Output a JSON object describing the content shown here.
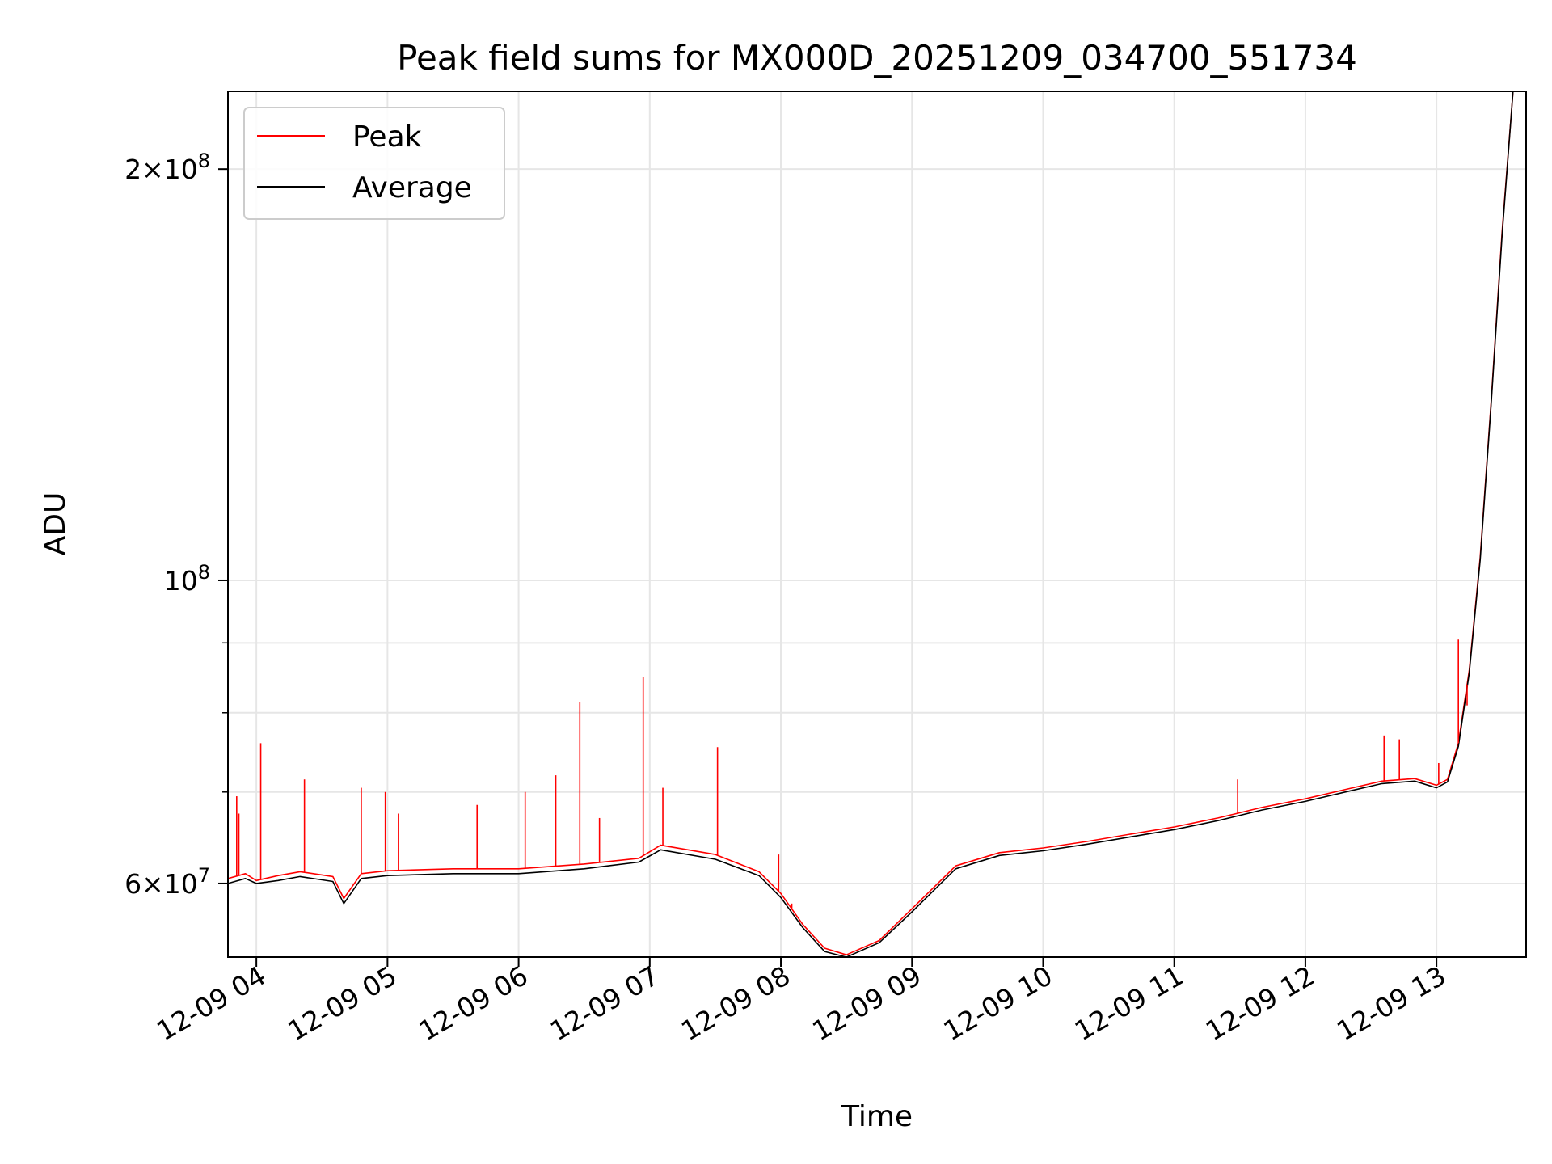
{
  "chart_data": {
    "type": "line",
    "title": "Peak field sums for MX000D_20251209_034700_551734",
    "xlabel": "Time",
    "ylabel": "ADU",
    "yscale": "log",
    "xlim": [
      "2025-12-09 03:47",
      "2025-12-09 13:41"
    ],
    "ylim": [
      53000000,
      228000000
    ],
    "grid": true,
    "legend_position": "top-left",
    "x_ticks": [
      {
        "value": "2025-12-09 04:00",
        "label": "12-09 04"
      },
      {
        "value": "2025-12-09 05:00",
        "label": "12-09 05"
      },
      {
        "value": "2025-12-09 06:00",
        "label": "12-09 06"
      },
      {
        "value": "2025-12-09 07:00",
        "label": "12-09 07"
      },
      {
        "value": "2025-12-09 08:00",
        "label": "12-09 08"
      },
      {
        "value": "2025-12-09 09:00",
        "label": "12-09 09"
      },
      {
        "value": "2025-12-09 10:00",
        "label": "12-09 10"
      },
      {
        "value": "2025-12-09 11:00",
        "label": "12-09 11"
      },
      {
        "value": "2025-12-09 12:00",
        "label": "12-09 12"
      },
      {
        "value": "2025-12-09 13:00",
        "label": "12-09 13"
      }
    ],
    "y_ticks_major": [
      {
        "value": 60000000,
        "mantissa": "6",
        "exponent": "7"
      },
      {
        "value": 100000000,
        "mantissa": "",
        "exponent": "8"
      },
      {
        "value": 200000000,
        "mantissa": "2",
        "exponent": "8"
      }
    ],
    "y_ticks_minor": [
      70000000,
      80000000,
      90000000
    ],
    "series": [
      {
        "name": "Peak",
        "color": "#ff0000",
        "x": [
          "2025-12-09 03:47",
          "2025-12-09 03:55",
          "2025-12-09 04:00",
          "2025-12-09 04:10",
          "2025-12-09 04:20",
          "2025-12-09 04:35",
          "2025-12-09 04:40",
          "2025-12-09 04:48",
          "2025-12-09 05:00",
          "2025-12-09 05:30",
          "2025-12-09 06:00",
          "2025-12-09 06:30",
          "2025-12-09 06:55",
          "2025-12-09 07:05",
          "2025-12-09 07:30",
          "2025-12-09 07:50",
          "2025-12-09 08:00",
          "2025-12-09 08:10",
          "2025-12-09 08:20",
          "2025-12-09 08:30",
          "2025-12-09 08:45",
          "2025-12-09 09:00",
          "2025-12-09 09:20",
          "2025-12-09 09:40",
          "2025-12-09 10:00",
          "2025-12-09 10:20",
          "2025-12-09 10:40",
          "2025-12-09 11:00",
          "2025-12-09 11:20",
          "2025-12-09 11:40",
          "2025-12-09 12:00",
          "2025-12-09 12:20",
          "2025-12-09 12:35",
          "2025-12-09 12:50",
          "2025-12-09 13:00",
          "2025-12-09 13:05",
          "2025-12-09 13:10",
          "2025-12-09 13:15",
          "2025-12-09 13:20",
          "2025-12-09 13:25",
          "2025-12-09 13:30",
          "2025-12-09 13:35"
        ],
        "values": [
          60500000,
          61000000,
          60300000,
          60800000,
          61200000,
          60700000,
          58500000,
          61000000,
          61300000,
          61500000,
          61500000,
          62000000,
          62600000,
          64000000,
          63000000,
          61200000,
          59000000,
          56000000,
          53800000,
          53200000,
          54500000,
          57500000,
          61800000,
          63200000,
          63700000,
          64400000,
          65200000,
          66000000,
          67000000,
          68200000,
          69200000,
          70400000,
          71300000,
          71600000,
          70800000,
          71500000,
          76000000,
          86000000,
          104000000,
          135000000,
          180000000,
          228000000
        ]
      },
      {
        "name": "Average",
        "color": "#000000",
        "x": [
          "2025-12-09 03:47",
          "2025-12-09 03:55",
          "2025-12-09 04:00",
          "2025-12-09 04:10",
          "2025-12-09 04:20",
          "2025-12-09 04:35",
          "2025-12-09 04:40",
          "2025-12-09 04:48",
          "2025-12-09 05:00",
          "2025-12-09 05:30",
          "2025-12-09 06:00",
          "2025-12-09 06:30",
          "2025-12-09 06:55",
          "2025-12-09 07:05",
          "2025-12-09 07:30",
          "2025-12-09 07:50",
          "2025-12-09 08:00",
          "2025-12-09 08:10",
          "2025-12-09 08:20",
          "2025-12-09 08:30",
          "2025-12-09 08:45",
          "2025-12-09 09:00",
          "2025-12-09 09:20",
          "2025-12-09 09:40",
          "2025-12-09 10:00",
          "2025-12-09 10:20",
          "2025-12-09 10:40",
          "2025-12-09 11:00",
          "2025-12-09 11:20",
          "2025-12-09 11:40",
          "2025-12-09 12:00",
          "2025-12-09 12:20",
          "2025-12-09 12:35",
          "2025-12-09 12:50",
          "2025-12-09 13:00",
          "2025-12-09 13:05",
          "2025-12-09 13:10",
          "2025-12-09 13:15",
          "2025-12-09 13:20",
          "2025-12-09 13:25",
          "2025-12-09 13:30",
          "2025-12-09 13:35"
        ],
        "values": [
          60000000,
          60500000,
          60000000,
          60300000,
          60700000,
          60200000,
          58000000,
          60500000,
          60800000,
          61000000,
          61000000,
          61500000,
          62200000,
          63500000,
          62500000,
          60800000,
          58600000,
          55700000,
          53500000,
          53000000,
          54300000,
          57200000,
          61500000,
          62900000,
          63400000,
          64100000,
          64900000,
          65700000,
          66700000,
          67900000,
          68900000,
          70100000,
          71000000,
          71300000,
          70500000,
          71200000,
          75600000,
          85600000,
          103500000,
          134500000,
          179000000,
          228000000
        ]
      }
    ],
    "peak_spikes": [
      {
        "x": "2025-12-09 03:51",
        "value": 69500000
      },
      {
        "x": "2025-12-09 03:52",
        "value": 67500000
      },
      {
        "x": "2025-12-09 04:02",
        "value": 76000000
      },
      {
        "x": "2025-12-09 04:22",
        "value": 71500000
      },
      {
        "x": "2025-12-09 04:48",
        "value": 70500000
      },
      {
        "x": "2025-12-09 04:59",
        "value": 70000000
      },
      {
        "x": "2025-12-09 05:05",
        "value": 67500000
      },
      {
        "x": "2025-12-09 05:41",
        "value": 68500000
      },
      {
        "x": "2025-12-09 06:03",
        "value": 70000000
      },
      {
        "x": "2025-12-09 06:17",
        "value": 72000000
      },
      {
        "x": "2025-12-09 06:28",
        "value": 81500000
      },
      {
        "x": "2025-12-09 06:37",
        "value": 67000000
      },
      {
        "x": "2025-12-09 06:57",
        "value": 85000000
      },
      {
        "x": "2025-12-09 07:06",
        "value": 70500000
      },
      {
        "x": "2025-12-09 07:31",
        "value": 75500000
      },
      {
        "x": "2025-12-09 07:59",
        "value": 63000000
      },
      {
        "x": "2025-12-09 08:05",
        "value": 58000000
      },
      {
        "x": "2025-12-09 11:29",
        "value": 71500000
      },
      {
        "x": "2025-12-09 12:36",
        "value": 77000000
      },
      {
        "x": "2025-12-09 12:43",
        "value": 76500000
      },
      {
        "x": "2025-12-09 13:01",
        "value": 73500000
      },
      {
        "x": "2025-12-09 13:10",
        "value": 90500000
      },
      {
        "x": "2025-12-09 13:14",
        "value": 81000000
      }
    ]
  }
}
